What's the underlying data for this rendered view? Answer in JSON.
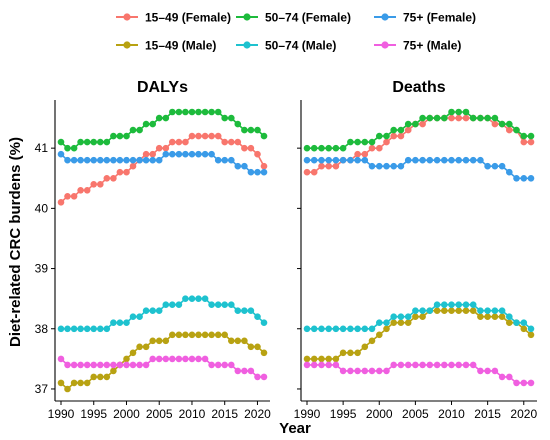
{
  "chart_data": {
    "type": "line",
    "ylabel": "Diet-related CRC burdens (%)",
    "xlabel": "Year",
    "xlim": [
      1990,
      2021
    ],
    "ylim": [
      36.8,
      41.8
    ],
    "x_ticks": [
      1990,
      1995,
      2000,
      2005,
      2010,
      2015,
      2020
    ],
    "y_ticks": [
      37,
      38,
      39,
      40,
      41
    ],
    "grid": false,
    "legend_position": "top",
    "legend_rows": [
      [
        "15–49 (Female)",
        "50–74 (Female)",
        "75+ (Female)"
      ],
      [
        "15–49 (Male)",
        "50–74 (Male)",
        "75+ (Male)"
      ]
    ],
    "series_colors": {
      "15–49 (Female)": "#F8766D",
      "50–74 (Female)": "#1DBB3C",
      "75+ (Female)": "#3A9BE8",
      "15–49 (Male)": "#B8A212",
      "50–74 (Male)": "#1EC2CF",
      "75+ (Male)": "#F05FE0"
    },
    "x": [
      1990,
      1991,
      1992,
      1993,
      1994,
      1995,
      1996,
      1997,
      1998,
      1999,
      2000,
      2001,
      2002,
      2003,
      2004,
      2005,
      2006,
      2007,
      2008,
      2009,
      2010,
      2011,
      2012,
      2013,
      2014,
      2015,
      2016,
      2017,
      2018,
      2019,
      2020,
      2021
    ],
    "panels": [
      {
        "title": "DALYs",
        "series": [
          {
            "name": "15–49 (Female)",
            "values": [
              40.1,
              40.2,
              40.2,
              40.3,
              40.3,
              40.4,
              40.4,
              40.5,
              40.5,
              40.6,
              40.6,
              40.7,
              40.8,
              40.9,
              40.9,
              41.0,
              41.0,
              41.1,
              41.1,
              41.1,
              41.2,
              41.2,
              41.2,
              41.2,
              41.2,
              41.1,
              41.1,
              41.1,
              41.0,
              41.0,
              40.9,
              40.7
            ]
          },
          {
            "name": "50–74 (Female)",
            "values": [
              41.1,
              41.0,
              41.0,
              41.1,
              41.1,
              41.1,
              41.1,
              41.1,
              41.2,
              41.2,
              41.2,
              41.3,
              41.3,
              41.4,
              41.4,
              41.5,
              41.5,
              41.6,
              41.6,
              41.6,
              41.6,
              41.6,
              41.6,
              41.6,
              41.6,
              41.5,
              41.5,
              41.4,
              41.3,
              41.3,
              41.3,
              41.2
            ]
          },
          {
            "name": "75+ (Female)",
            "values": [
              40.9,
              40.8,
              40.8,
              40.8,
              40.8,
              40.8,
              40.8,
              40.8,
              40.8,
              40.8,
              40.8,
              40.8,
              40.8,
              40.8,
              40.8,
              40.8,
              40.9,
              40.9,
              40.9,
              40.9,
              40.9,
              40.9,
              40.9,
              40.9,
              40.8,
              40.8,
              40.8,
              40.7,
              40.7,
              40.6,
              40.6,
              40.6
            ]
          },
          {
            "name": "15–49 (Male)",
            "values": [
              37.1,
              37.0,
              37.1,
              37.1,
              37.1,
              37.2,
              37.2,
              37.2,
              37.3,
              37.4,
              37.5,
              37.6,
              37.7,
              37.7,
              37.8,
              37.8,
              37.8,
              37.9,
              37.9,
              37.9,
              37.9,
              37.9,
              37.9,
              37.9,
              37.9,
              37.9,
              37.8,
              37.8,
              37.8,
              37.7,
              37.7,
              37.6
            ]
          },
          {
            "name": "50–74 (Male)",
            "values": [
              38.0,
              38.0,
              38.0,
              38.0,
              38.0,
              38.0,
              38.0,
              38.0,
              38.1,
              38.1,
              38.1,
              38.2,
              38.2,
              38.3,
              38.3,
              38.3,
              38.4,
              38.4,
              38.4,
              38.5,
              38.5,
              38.5,
              38.5,
              38.4,
              38.4,
              38.4,
              38.4,
              38.3,
              38.3,
              38.3,
              38.2,
              38.1
            ]
          },
          {
            "name": "75+ (Male)",
            "values": [
              37.5,
              37.4,
              37.4,
              37.4,
              37.4,
              37.4,
              37.4,
              37.4,
              37.4,
              37.4,
              37.4,
              37.4,
              37.4,
              37.4,
              37.5,
              37.5,
              37.5,
              37.5,
              37.5,
              37.5,
              37.5,
              37.5,
              37.5,
              37.4,
              37.4,
              37.4,
              37.4,
              37.3,
              37.3,
              37.3,
              37.2,
              37.2
            ]
          }
        ]
      },
      {
        "title": "Deaths",
        "series": [
          {
            "name": "15–49 (Female)",
            "values": [
              40.6,
              40.6,
              40.7,
              40.7,
              40.7,
              40.8,
              40.8,
              40.9,
              40.9,
              41.0,
              41.0,
              41.1,
              41.2,
              41.2,
              41.3,
              41.4,
              41.4,
              41.5,
              41.5,
              41.5,
              41.5,
              41.5,
              41.5,
              41.5,
              41.5,
              41.5,
              41.4,
              41.4,
              41.3,
              41.3,
              41.1,
              41.1
            ]
          },
          {
            "name": "50–74 (Female)",
            "values": [
              41.0,
              41.0,
              41.0,
              41.0,
              41.0,
              41.0,
              41.1,
              41.1,
              41.1,
              41.1,
              41.2,
              41.2,
              41.3,
              41.3,
              41.4,
              41.4,
              41.5,
              41.5,
              41.5,
              41.5,
              41.6,
              41.6,
              41.6,
              41.5,
              41.5,
              41.5,
              41.5,
              41.4,
              41.4,
              41.3,
              41.2,
              41.2
            ]
          },
          {
            "name": "75+ (Female)",
            "values": [
              40.8,
              40.8,
              40.8,
              40.8,
              40.8,
              40.8,
              40.8,
              40.8,
              40.8,
              40.7,
              40.7,
              40.7,
              40.7,
              40.7,
              40.8,
              40.8,
              40.8,
              40.8,
              40.8,
              40.8,
              40.8,
              40.8,
              40.8,
              40.8,
              40.8,
              40.7,
              40.7,
              40.7,
              40.6,
              40.5,
              40.5,
              40.5
            ]
          },
          {
            "name": "15–49 (Male)",
            "values": [
              37.5,
              37.5,
              37.5,
              37.5,
              37.5,
              37.6,
              37.6,
              37.6,
              37.7,
              37.8,
              37.9,
              38.0,
              38.1,
              38.1,
              38.1,
              38.2,
              38.2,
              38.3,
              38.3,
              38.3,
              38.3,
              38.3,
              38.3,
              38.3,
              38.2,
              38.2,
              38.2,
              38.2,
              38.1,
              38.1,
              38.0,
              37.9
            ]
          },
          {
            "name": "50–74 (Male)",
            "values": [
              38.0,
              38.0,
              38.0,
              38.0,
              38.0,
              38.0,
              38.0,
              38.0,
              38.0,
              38.0,
              38.1,
              38.1,
              38.2,
              38.2,
              38.2,
              38.3,
              38.3,
              38.3,
              38.4,
              38.4,
              38.4,
              38.4,
              38.4,
              38.4,
              38.3,
              38.3,
              38.3,
              38.3,
              38.2,
              38.1,
              38.1,
              38.0
            ]
          },
          {
            "name": "75+ (Male)",
            "values": [
              37.4,
              37.4,
              37.4,
              37.4,
              37.4,
              37.3,
              37.3,
              37.3,
              37.3,
              37.3,
              37.3,
              37.3,
              37.4,
              37.4,
              37.4,
              37.4,
              37.4,
              37.4,
              37.4,
              37.4,
              37.4,
              37.4,
              37.4,
              37.4,
              37.3,
              37.3,
              37.3,
              37.2,
              37.2,
              37.1,
              37.1,
              37.1
            ]
          }
        ]
      }
    ]
  }
}
